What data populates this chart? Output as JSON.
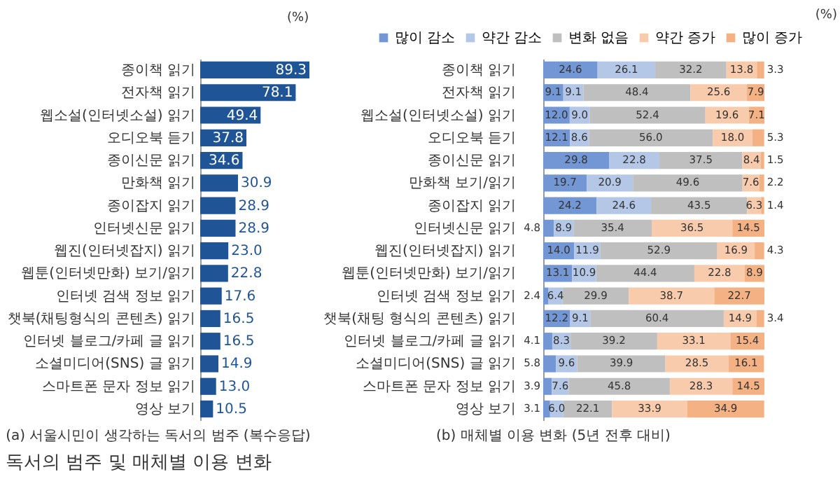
{
  "chart_data": [
    {
      "type": "bar",
      "orientation": "horizontal",
      "title": "(a) 서울시민이 생각하는 독서의 범주 (복수응답)",
      "annotations": [
        "(%)",
        "독서의 범주 및 매체별 이용 변화"
      ],
      "categories": [
        "종이책 읽기",
        "전자책 읽기",
        "웹소설(인터넷소설) 읽기",
        "오디오북 듣기",
        "종이신문 읽기",
        "만화책 읽기",
        "종이잡지 읽기",
        "인터넷신문 읽기",
        "웹진(인터넷잡지) 읽기",
        "웹툰(인터넷만화) 보기/읽기",
        "인터넷 검색 정보 읽기",
        "챗북(채팅형식의 콘텐츠) 읽기",
        "인터넷 블로그/카페 글 읽기",
        "소셜미디어(SNS) 글 읽기",
        "스마트폰 문자 정보 읽기",
        "영상 보기"
      ],
      "values": [
        89.3,
        78.1,
        49.4,
        37.8,
        34.6,
        30.9,
        28.9,
        28.9,
        23.0,
        22.8,
        17.6,
        16.5,
        16.5,
        14.9,
        13.0,
        10.5
      ],
      "value_labels": [
        "89.3",
        "78.1",
        "49.4",
        "37.8",
        "34.6",
        "30.9",
        "28.9",
        "28.9",
        "23.0",
        "22.8",
        "17.6",
        "16.5",
        "16.5",
        "14.9",
        "13.0",
        "10.5"
      ],
      "color": "#1f5597"
    },
    {
      "type": "bar",
      "orientation": "horizontal",
      "stacked": true,
      "title": "(b) 매체별 이용 변화 (5년 전후 대비)",
      "annotations": [
        "(%)"
      ],
      "legend": "top",
      "categories": [
        "종이책 읽기",
        "전자책 읽기",
        "웹소설(인터넷소설) 읽기",
        "오디오북 듣기",
        "종이신문 읽기",
        "만화책 보기/읽기",
        "종이잡지 읽기",
        "인터넷신문 읽기",
        "웹진(인터넷잡지) 읽기",
        "웹툰(인터넷만화) 보기/읽기",
        "인터넷 검색 정보 읽기",
        "챗북(채팅 형식의 콘텐츠) 읽기",
        "인터넷 블로그/카페 글 읽기",
        "소셜미디어(SNS) 글 읽기",
        "스마트폰 문자 정보 읽기",
        "영상 보기"
      ],
      "series": [
        {
          "name": "많이 감소",
          "color": "#7396d4",
          "values": [
            24.6,
            9.1,
            12.0,
            12.1,
            29.8,
            19.7,
            24.2,
            4.8,
            14.0,
            13.1,
            2.4,
            12.2,
            4.1,
            5.8,
            3.9,
            3.1
          ],
          "value_labels": [
            "24.6",
            "9.1",
            "12.0",
            "12.1",
            "29.8",
            "19.7",
            "24.2",
            "4.8",
            "14.0",
            "13.1",
            "2.4",
            "12.2",
            "4.1",
            "5.8",
            "3.9",
            "3.1"
          ]
        },
        {
          "name": "약간 감소",
          "color": "#b4c7e7",
          "values": [
            26.1,
            9.1,
            9.0,
            8.6,
            22.8,
            20.9,
            24.6,
            8.9,
            11.9,
            10.9,
            6.4,
            9.1,
            8.3,
            9.6,
            7.6,
            6.0
          ],
          "value_labels": [
            "26.1",
            "9.1",
            "9.0",
            "8.6",
            "22.8",
            "20.9",
            "24.6",
            "8.9",
            "11.9",
            "10.9",
            "6.4",
            "9.1",
            "8.3",
            "9.6",
            "7.6",
            "6.0"
          ]
        },
        {
          "name": "변화 없음",
          "color": "#bfbfbf",
          "values": [
            32.2,
            48.4,
            52.4,
            56.0,
            37.5,
            49.6,
            43.5,
            35.4,
            52.9,
            44.4,
            29.9,
            60.4,
            39.2,
            39.9,
            45.8,
            22.1
          ],
          "value_labels": [
            "32.2",
            "48.4",
            "52.4",
            "56.0",
            "37.5",
            "49.6",
            "43.5",
            "35.4",
            "52.9",
            "44.4",
            "29.9",
            "60.4",
            "39.2",
            "39.9",
            "45.8",
            "22.1"
          ]
        },
        {
          "name": "약간 증가",
          "color": "#f8cbad",
          "values": [
            13.8,
            25.6,
            19.6,
            18.0,
            8.4,
            7.6,
            6.3,
            36.5,
            16.9,
            22.8,
            38.7,
            14.9,
            33.1,
            28.5,
            28.3,
            33.9
          ],
          "value_labels": [
            "13.8",
            "25.6",
            "19.6",
            "18.0",
            "8.4",
            "7.6",
            "6.3",
            "36.5",
            "16.9",
            "22.8",
            "38.7",
            "14.9",
            "33.1",
            "28.5",
            "28.3",
            "33.9"
          ]
        },
        {
          "name": "많이 증가",
          "color": "#f4b183",
          "values": [
            3.3,
            7.9,
            7.1,
            5.3,
            1.5,
            2.2,
            1.4,
            14.5,
            4.3,
            8.9,
            22.7,
            3.4,
            15.4,
            16.1,
            14.5,
            34.9
          ],
          "value_labels": [
            "3.3",
            "7.9",
            "7.1",
            "5.3",
            "1.5",
            "2.2",
            "1.4",
            "14.5",
            "4.3",
            "8.9",
            "22.7",
            "3.4",
            "15.4",
            "16.1",
            "14.5",
            "34.9"
          ]
        }
      ]
    }
  ]
}
